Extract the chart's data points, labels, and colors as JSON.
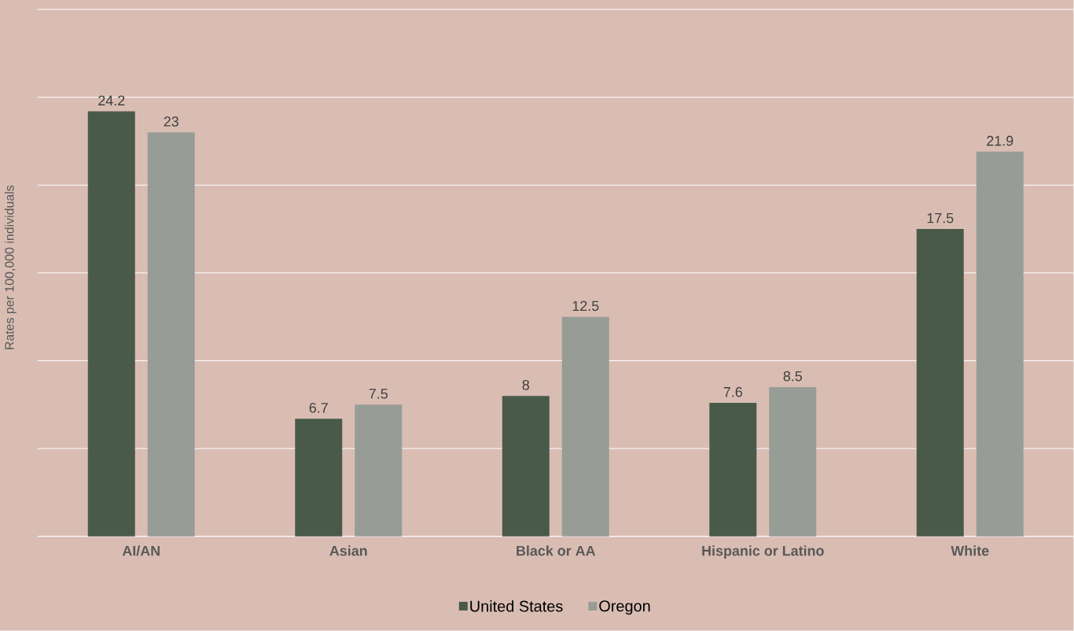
{
  "chart_data": {
    "type": "bar",
    "ylabel": "Rates per 100,000 individuals",
    "categories": [
      "AI/AN",
      "Asian",
      "Black or AA",
      "Hispanic or Latino",
      "White"
    ],
    "series": [
      {
        "name": "United States",
        "color": "#4a5a4a",
        "values": [
          24.2,
          6.7,
          8,
          7.6,
          17.5
        ]
      },
      {
        "name": "Oregon",
        "color": "#979d96",
        "values": [
          23,
          7.5,
          12.5,
          8.5,
          21.9
        ]
      }
    ],
    "ylim": [
      0,
      30
    ],
    "yticks": [
      {
        "value": 0,
        "label": null
      },
      {
        "value": 5,
        "label": null
      },
      {
        "value": 10,
        "label": null
      },
      {
        "value": 15,
        "label": null
      },
      {
        "value": 20,
        "label": null
      },
      {
        "value": 25,
        "label": null
      },
      {
        "value": 30,
        "label": null
      }
    ],
    "grid": "y",
    "legend": "bottom",
    "tick_labels": "x",
    "data_labels": true
  }
}
